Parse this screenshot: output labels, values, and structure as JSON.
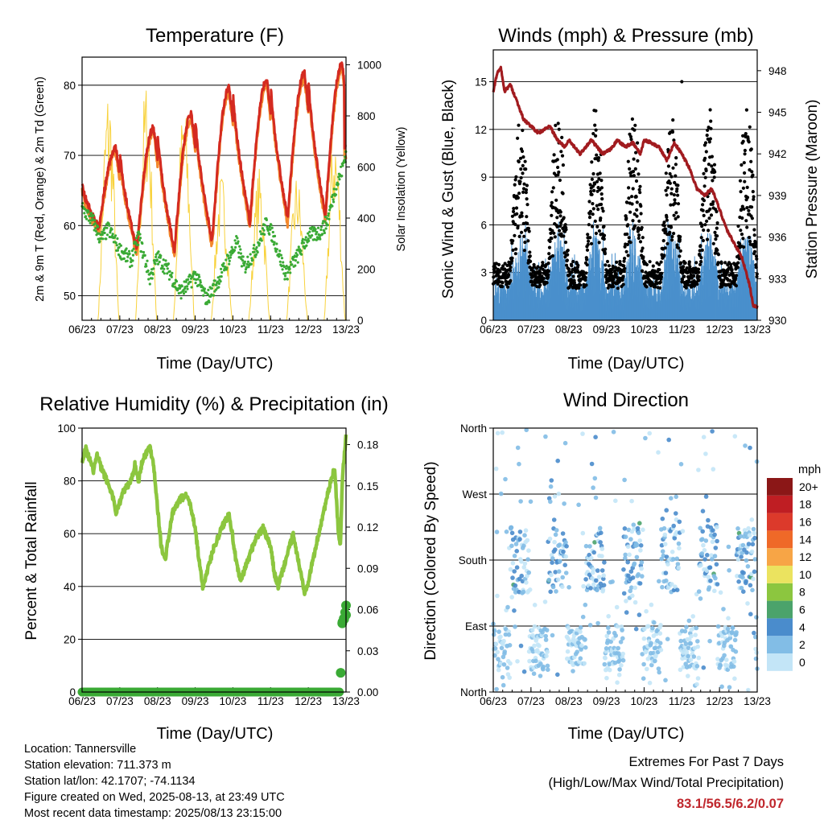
{
  "panels": {
    "temperature": {
      "title": "Temperature (F)",
      "xlabel": "Time (Day/UTC)",
      "ylabel_left": "2m & 9m T (Red, Orange) & 2m Td (Green)",
      "ylabel_right": "Solar Insolation (Yellow)"
    },
    "wind": {
      "title": "Winds (mph) & Pressure (mb)",
      "xlabel": "Time (Day/UTC)",
      "ylabel_left": "Sonic Wind & Gust (Blue, Black)",
      "ylabel_right": "Station Pressure (Maroon)"
    },
    "humidity": {
      "title": "Relative Humidity (%) & Precipitation (in)",
      "xlabel": "Time (Day/UTC)",
      "ylabel_left": "Percent & Total Rainfall"
    },
    "direction": {
      "title": "Wind Direction",
      "xlabel": "Time (Day/UTC)",
      "ylabel_left": "Direction (Colored By Speed)",
      "legend_title": "mph"
    }
  },
  "info": {
    "location": "Location: Tannersville",
    "elevation": "Station elevation: 711.373 m",
    "latlon": "Station lat/lon: 42.1707; -74.1134",
    "created": "Figure created on Wed, 2025-08-13, at 23:49 UTC",
    "latest": "Most recent data timestamp: 2025/08/13 23:15:00"
  },
  "extremes": {
    "title": "Extremes For Past 7 Days",
    "subtitle": "(High/Low/Max Wind/Total Precipitation)",
    "values": "83.1/56.5/6.2/0.07"
  },
  "chart_data": [
    {
      "id": "temperature",
      "type": "line",
      "x_ticks": [
        "06/23",
        "07/23",
        "08/23",
        "09/23",
        "10/23",
        "11/23",
        "12/23",
        "13/23"
      ],
      "xlim": [
        6.0,
        13.0
      ],
      "ylim_left": [
        46.5,
        84.0
      ],
      "yticks_left": [
        50,
        60,
        70,
        80
      ],
      "ylim_right": [
        0,
        1030
      ],
      "yticks_right": [
        0,
        200,
        400,
        600,
        800,
        1000
      ],
      "grid": true,
      "colors": {
        "t2m": "#d42a20",
        "t9m": "#f3882c",
        "td": "#3aaa35",
        "solar": "#f8d23d"
      },
      "t2m_daily_max": [
        71.0,
        73.9,
        76.0,
        79.7,
        80.8,
        81.7,
        83.1
      ],
      "t2m_daily_min": [
        59.6,
        56.6,
        56.5,
        57.8,
        60.5,
        61.0,
        61.4
      ],
      "t2m_start": 66.0,
      "t2m_end": 71.0,
      "td_keypoints": [
        [
          6.0,
          62.5
        ],
        [
          6.3,
          60.5
        ],
        [
          6.5,
          58.0
        ],
        [
          6.7,
          59.5
        ],
        [
          7.0,
          56.5
        ],
        [
          7.3,
          55.0
        ],
        [
          7.5,
          58.5
        ],
        [
          7.8,
          52.5
        ],
        [
          8.0,
          55.5
        ],
        [
          8.3,
          53.5
        ],
        [
          8.6,
          50.5
        ],
        [
          8.8,
          51.5
        ],
        [
          9.0,
          53.0
        ],
        [
          9.3,
          49.5
        ],
        [
          9.6,
          52.0
        ],
        [
          9.9,
          55.5
        ],
        [
          10.1,
          57.5
        ],
        [
          10.3,
          54.0
        ],
        [
          10.6,
          56.5
        ],
        [
          10.9,
          60.5
        ],
        [
          11.1,
          58.0
        ],
        [
          11.4,
          53.0
        ],
        [
          11.7,
          55.5
        ],
        [
          12.0,
          58.5
        ],
        [
          12.3,
          59.0
        ],
        [
          12.5,
          60.5
        ],
        [
          12.7,
          65.0
        ],
        [
          12.9,
          68.0
        ],
        [
          13.0,
          70.5
        ]
      ],
      "solar_daily_peak": [
        930,
        950,
        875,
        580,
        600,
        580,
        760,
        620
      ]
    },
    {
      "id": "wind",
      "type": "line",
      "x_ticks": [
        "06/23",
        "07/23",
        "08/23",
        "09/23",
        "10/23",
        "11/23",
        "12/23",
        "13/23"
      ],
      "xlim": [
        6.0,
        13.0
      ],
      "ylim_left": [
        0,
        17.0
      ],
      "yticks_left": [
        0,
        3,
        6,
        9,
        12,
        15
      ],
      "ylim_right": [
        930,
        949.5
      ],
      "yticks_right": [
        930,
        933,
        936,
        939,
        942,
        945,
        948
      ],
      "grid": true,
      "colors": {
        "wind": "#4a90cc",
        "gust": "#000000",
        "pressure": "#a11b1f"
      },
      "pressure_keypoints": [
        [
          6.0,
          946.5
        ],
        [
          6.1,
          947.8
        ],
        [
          6.2,
          948.2
        ],
        [
          6.3,
          946.5
        ],
        [
          6.45,
          947.0
        ],
        [
          6.6,
          946.0
        ],
        [
          6.8,
          944.5
        ],
        [
          7.0,
          944.0
        ],
        [
          7.2,
          943.5
        ],
        [
          7.5,
          944.0
        ],
        [
          7.7,
          943.0
        ],
        [
          7.9,
          942.5
        ],
        [
          8.0,
          943.0
        ],
        [
          8.3,
          942.0
        ],
        [
          8.6,
          943.0
        ],
        [
          8.9,
          942.0
        ],
        [
          9.1,
          942.3
        ],
        [
          9.3,
          943.0
        ],
        [
          9.5,
          942.5
        ],
        [
          9.7,
          942.8
        ],
        [
          9.9,
          942.0
        ],
        [
          10.0,
          943.0
        ],
        [
          10.2,
          942.8
        ],
        [
          10.4,
          942.5
        ],
        [
          10.6,
          941.5
        ],
        [
          10.8,
          942.8
        ],
        [
          11.0,
          942.0
        ],
        [
          11.2,
          941.0
        ],
        [
          11.4,
          939.5
        ],
        [
          11.6,
          939.0
        ],
        [
          11.8,
          939.5
        ],
        [
          12.0,
          938.0
        ],
        [
          12.2,
          936.5
        ],
        [
          12.4,
          935.5
        ],
        [
          12.6,
          934.5
        ],
        [
          12.8,
          932.5
        ],
        [
          12.9,
          931.0
        ],
        [
          13.0,
          931.0
        ]
      ],
      "wind_typical_range": [
        0,
        6.2
      ],
      "gust_typical_range": [
        1,
        15
      ]
    },
    {
      "id": "humidity",
      "type": "line",
      "x_ticks": [
        "06/23",
        "07/23",
        "08/23",
        "09/23",
        "10/23",
        "11/23",
        "12/23",
        "13/23"
      ],
      "xlim": [
        6.0,
        13.0
      ],
      "ylim_left": [
        0,
        100
      ],
      "yticks_left": [
        0,
        20,
        40,
        60,
        80,
        100
      ],
      "ylim_right": [
        0,
        0.192
      ],
      "yticks_right": [
        0.0,
        0.03,
        0.06,
        0.09,
        0.12,
        0.15,
        0.18
      ],
      "grid": true,
      "colors": {
        "rh": "#8cc63f",
        "precip": "#3aaa35"
      },
      "rh_keypoints": [
        [
          6.0,
          88
        ],
        [
          6.1,
          92
        ],
        [
          6.2,
          88
        ],
        [
          6.3,
          84
        ],
        [
          6.4,
          90
        ],
        [
          6.5,
          85
        ],
        [
          6.6,
          82
        ],
        [
          6.8,
          75
        ],
        [
          6.9,
          68
        ],
        [
          7.1,
          76
        ],
        [
          7.3,
          80
        ],
        [
          7.4,
          86
        ],
        [
          7.5,
          80
        ],
        [
          7.6,
          88
        ],
        [
          7.8,
          93
        ],
        [
          7.9,
          86
        ],
        [
          8.0,
          70
        ],
        [
          8.1,
          55
        ],
        [
          8.2,
          50
        ],
        [
          8.4,
          68
        ],
        [
          8.6,
          73
        ],
        [
          8.8,
          75
        ],
        [
          9.0,
          62
        ],
        [
          9.1,
          50
        ],
        [
          9.2,
          40
        ],
        [
          9.3,
          45
        ],
        [
          9.5,
          55
        ],
        [
          9.7,
          62
        ],
        [
          9.9,
          68
        ],
        [
          10.0,
          58
        ],
        [
          10.1,
          48
        ],
        [
          10.2,
          42
        ],
        [
          10.4,
          50
        ],
        [
          10.6,
          58
        ],
        [
          10.8,
          62
        ],
        [
          11.0,
          55
        ],
        [
          11.1,
          45
        ],
        [
          11.2,
          40
        ],
        [
          11.4,
          50
        ],
        [
          11.6,
          60
        ],
        [
          11.7,
          52
        ],
        [
          11.8,
          45
        ],
        [
          11.9,
          38
        ],
        [
          12.0,
          42
        ],
        [
          12.2,
          55
        ],
        [
          12.4,
          68
        ],
        [
          12.6,
          80
        ],
        [
          12.7,
          85
        ],
        [
          12.8,
          60
        ],
        [
          12.85,
          55
        ],
        [
          12.9,
          80
        ],
        [
          13.0,
          98
        ]
      ],
      "precip_total_keypoints": [
        [
          6.0,
          0.0
        ],
        [
          12.85,
          0.0
        ],
        [
          12.86,
          0.014
        ],
        [
          12.88,
          0.05
        ],
        [
          12.95,
          0.055
        ],
        [
          13.0,
          0.065
        ]
      ]
    },
    {
      "id": "direction",
      "type": "scatter",
      "x_ticks": [
        "06/23",
        "07/23",
        "08/23",
        "09/23",
        "10/23",
        "11/23",
        "12/23",
        "13/23"
      ],
      "xlim": [
        6.0,
        13.0
      ],
      "yticks_labels": [
        "North",
        "East",
        "South",
        "West",
        "North"
      ],
      "yticks_values": [
        0,
        90,
        180,
        270,
        360
      ],
      "grid": true,
      "legend_levels": [
        "0",
        "2",
        "4",
        "6",
        "8",
        "10",
        "12",
        "14",
        "16",
        "18",
        "20+"
      ],
      "legend_colors": [
        "#c3e5f7",
        "#82bde6",
        "#4a8ccc",
        "#4ba36b",
        "#8cc63f",
        "#ebe35f",
        "#f7a546",
        "#ef6928",
        "#dc3a2b",
        "#bf1e23",
        "#8b1717"
      ],
      "typical_direction_night": 60,
      "typical_direction_day": 180
    }
  ]
}
